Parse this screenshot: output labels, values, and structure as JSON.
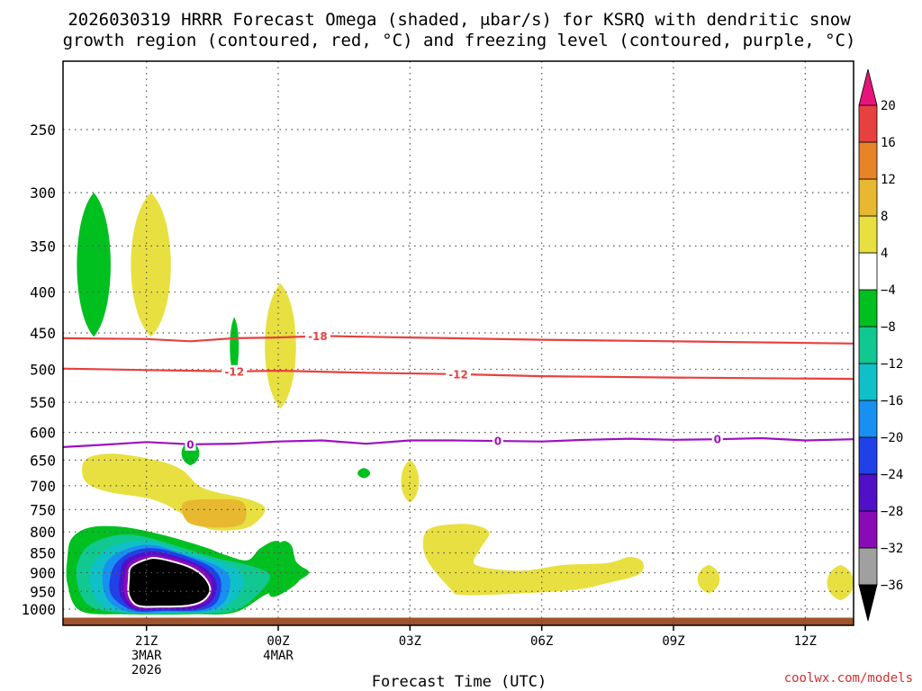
{
  "title": {
    "line1": "2026030319 HRRR Forecast Omega (shaded, μbar/s) for KSRQ with dendritic snow",
    "line2": "growth region (contoured, red, °C) and freezing level (contoured, purple, °C)"
  },
  "credit": "coolwx.com/models",
  "credit_color": "#d03030",
  "chart_data": {
    "type": "heatmap",
    "title": "2026030319 HRRR Forecast Omega (shaded, μbar/s) for KSRQ with dendritic snow growth region (contoured, red, °C) and freezing level (contoured, purple, °C)",
    "xlabel": "Forecast Time (UTC)",
    "ylabel": "",
    "y_scale": "log-pressure",
    "y_ticks": [
      250,
      300,
      350,
      400,
      450,
      500,
      550,
      600,
      650,
      700,
      750,
      800,
      850,
      900,
      950,
      1000
    ],
    "ylim": [
      1025,
      200
    ],
    "x_hours_range": [
      -1.9,
      16.1
    ],
    "x_ticks": [
      {
        "hour": 0,
        "lines": [
          "21Z",
          "3MAR",
          "2026"
        ]
      },
      {
        "hour": 3,
        "lines": [
          "00Z",
          "4MAR"
        ]
      },
      {
        "hour": 6,
        "lines": [
          "03Z"
        ]
      },
      {
        "hour": 9,
        "lines": [
          "06Z"
        ]
      },
      {
        "hour": 12,
        "lines": [
          "09Z"
        ]
      },
      {
        "hour": 15,
        "lines": [
          "12Z"
        ]
      }
    ],
    "grid": true,
    "colorbar": {
      "position": "right",
      "levels": [
        -36,
        -32,
        -28,
        -24,
        -20,
        -16,
        -12,
        -8,
        -4,
        4,
        8,
        12,
        16,
        20
      ],
      "colors": [
        "#a0a0a0",
        "#8a0ab8",
        "#5010c8",
        "#2040e8",
        "#1890f0",
        "#10c0c8",
        "#10c890",
        "#00c020",
        "#ffffff",
        "#e8e040",
        "#e8b830",
        "#e88428",
        "#e84040"
      ],
      "below_color": "#000000",
      "above_color": "#e8147a"
    },
    "contours": [
      {
        "name": "dendritic snow growth region",
        "value": -18,
        "color": "#e84040",
        "points": [
          [
            -1.9,
            457
          ],
          [
            0,
            458
          ],
          [
            1,
            461
          ],
          [
            2,
            457
          ],
          [
            3,
            456
          ],
          [
            4,
            454
          ],
          [
            6,
            456
          ],
          [
            9,
            459
          ],
          [
            12,
            461
          ],
          [
            16.1,
            464
          ]
        ],
        "labels": [
          {
            "hour": 3.9,
            "text": "-18"
          }
        ]
      },
      {
        "name": "dendritic snow growth region",
        "value": -12,
        "color": "#e84040",
        "points": [
          [
            -1.9,
            499
          ],
          [
            0,
            501
          ],
          [
            1,
            502
          ],
          [
            2,
            503
          ],
          [
            3,
            502
          ],
          [
            5,
            505
          ],
          [
            7,
            507
          ],
          [
            9,
            510
          ],
          [
            12,
            512
          ],
          [
            16.1,
            514
          ]
        ],
        "labels": [
          {
            "hour": 2.0,
            "text": "-12"
          },
          {
            "hour": 7.1,
            "text": "-12"
          }
        ]
      },
      {
        "name": "freezing level",
        "value": 0,
        "color": "#a010c0",
        "points": [
          [
            -1.9,
            626
          ],
          [
            -1,
            622
          ],
          [
            0,
            617
          ],
          [
            1,
            621
          ],
          [
            2,
            620
          ],
          [
            3,
            616
          ],
          [
            4,
            614
          ],
          [
            5,
            620
          ],
          [
            6,
            614
          ],
          [
            7,
            614
          ],
          [
            9,
            616
          ],
          [
            10,
            613
          ],
          [
            11,
            611
          ],
          [
            12,
            613
          ],
          [
            13,
            612
          ],
          [
            14,
            610
          ],
          [
            15,
            614
          ],
          [
            16.1,
            612
          ]
        ],
        "labels": [
          {
            "hour": 1.0,
            "text": "0"
          },
          {
            "hour": 8.0,
            "text": "0"
          },
          {
            "hour": 13.0,
            "text": "0"
          }
        ]
      }
    ],
    "shaded_regions": [
      {
        "level": "-8",
        "color": "#00c020",
        "hour": -1.2,
        "p_top": 300,
        "p_bottom": 455,
        "half_width_h": 0.38
      },
      {
        "level": "4",
        "color": "#e8e040",
        "hour": 0.1,
        "p_top": 300,
        "p_bottom": 455,
        "half_width_h": 0.45
      },
      {
        "level": "-8",
        "color": "#00c020",
        "hour": 2.0,
        "p_top": 430,
        "p_bottom": 510,
        "half_width_h": 0.1
      },
      {
        "level": "4",
        "color": "#e8e040",
        "hour": 3.05,
        "p_top": 390,
        "p_bottom": 560,
        "half_width_h": 0.35
      },
      {
        "level": "-8",
        "color": "#00c020",
        "hour": 1.0,
        "p_top": 615,
        "p_bottom": 660,
        "half_width_h": 0.2
      },
      {
        "level": "-8",
        "color": "#00c020",
        "hour": 4.95,
        "p_top": 665,
        "p_bottom": 685,
        "half_width_h": 0.14
      },
      {
        "level": "4",
        "color": "#e8e040",
        "hour": 6.0,
        "p_top": 650,
        "p_bottom": 735,
        "half_width_h": 0.2
      },
      {
        "level": "4",
        "color": "#e8e040",
        "hour": 12.8,
        "p_top": 880,
        "p_bottom": 955,
        "half_width_h": 0.25
      },
      {
        "level": "4",
        "color": "#e8e040",
        "hour": 15.8,
        "p_top": 880,
        "p_bottom": 975,
        "half_width_h": 0.3
      }
    ]
  },
  "colors": {
    "ground": "#a0522d",
    "grid": "#555555",
    "frame": "#000000"
  }
}
